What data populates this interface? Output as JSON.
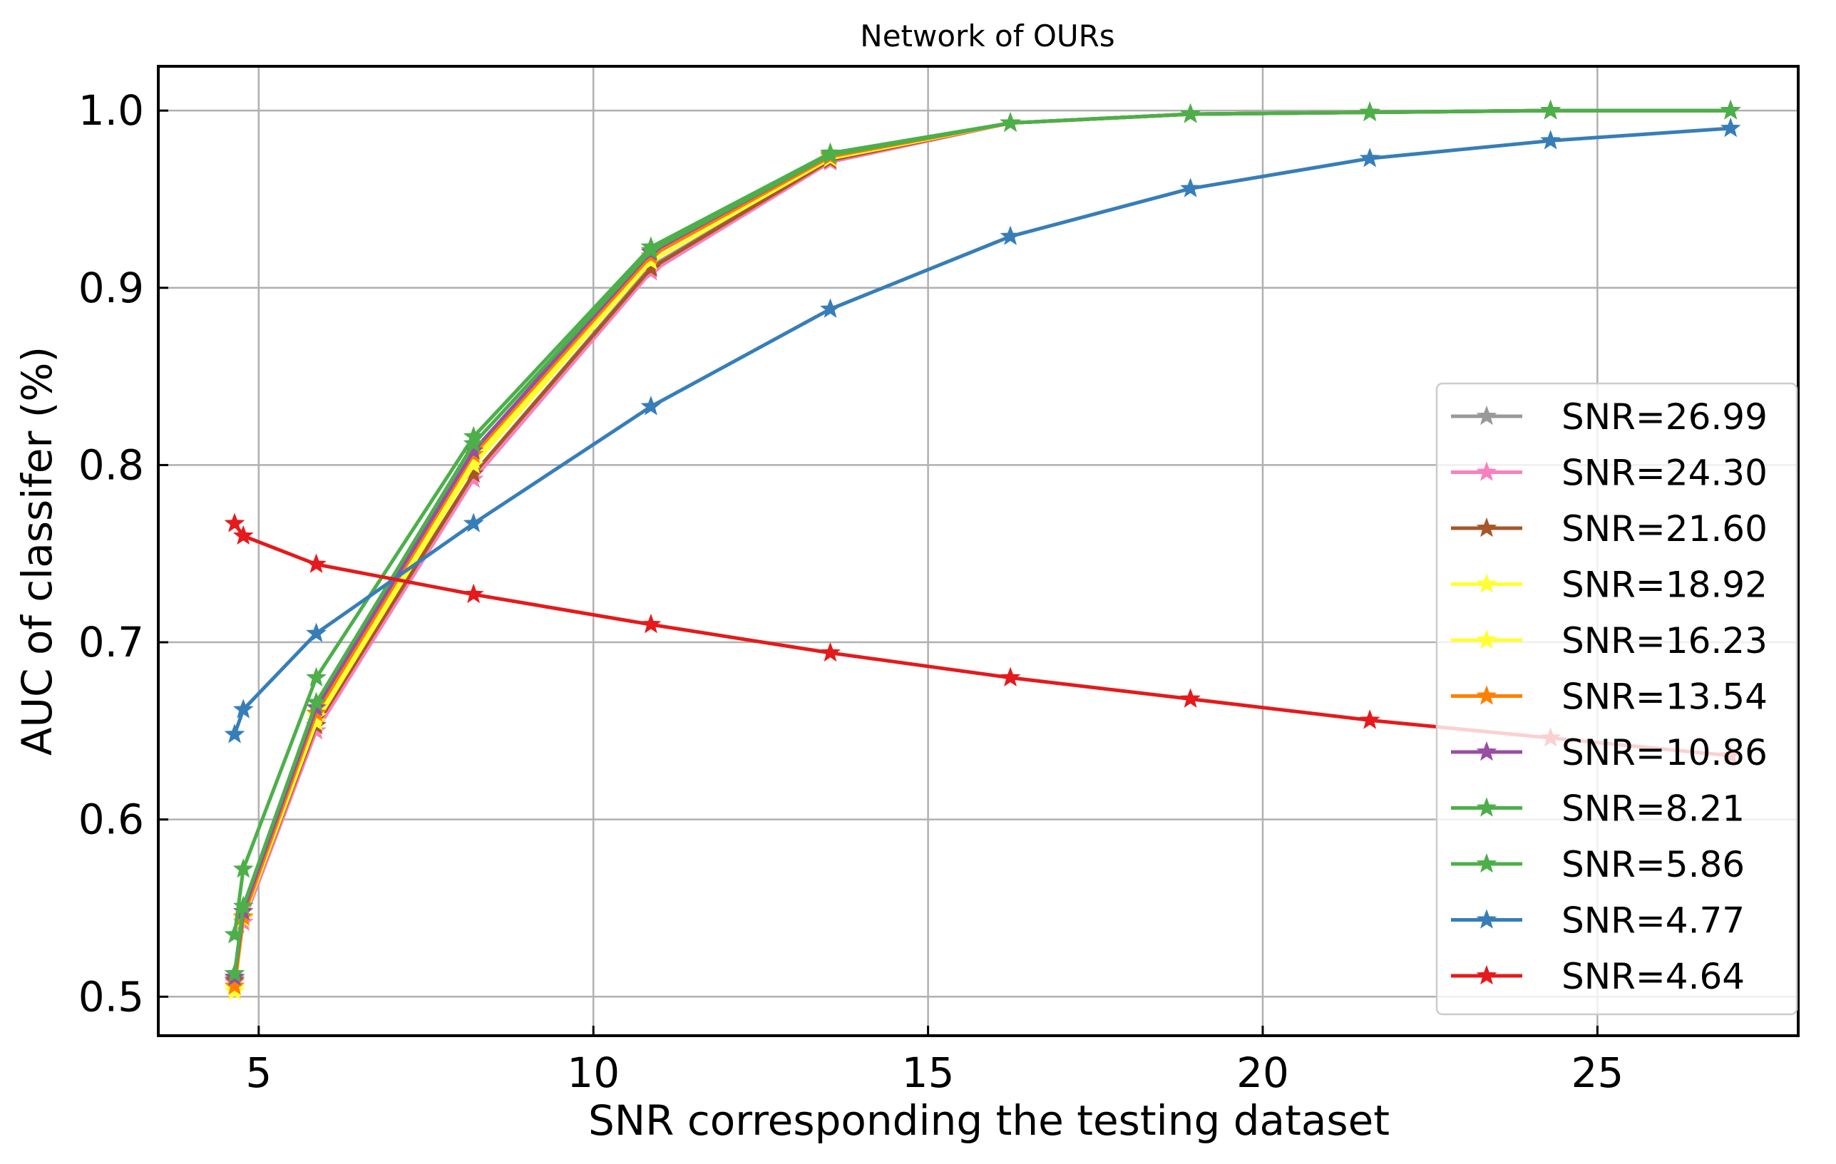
{
  "chart_data": {
    "type": "line",
    "title": "Network of OURs",
    "xlabel": "SNR corresponding the testing dataset",
    "ylabel": "AUC of classifer (%)",
    "xlim": [
      3.5,
      28.0
    ],
    "ylim": [
      0.478,
      1.025
    ],
    "xticks": [
      5,
      10,
      15,
      20,
      25
    ],
    "yticks": [
      0.5,
      0.6,
      0.7,
      0.8,
      0.9,
      1.0
    ],
    "xtick_labels": [
      "5",
      "10",
      "15",
      "20",
      "25"
    ],
    "ytick_labels": [
      "0.5",
      "0.6",
      "0.7",
      "0.8",
      "0.9",
      "1.0"
    ],
    "grid": true,
    "legend_position": "lower-right",
    "marker": "star",
    "x": [
      4.64,
      4.77,
      5.86,
      8.21,
      10.86,
      13.54,
      16.23,
      18.92,
      21.6,
      24.3,
      26.99
    ],
    "series": [
      {
        "name": "SNR=26.99",
        "color": "#999999",
        "values": [
          0.51,
          0.545,
          0.655,
          0.795,
          0.912,
          0.972,
          0.993,
          0.998,
          0.999,
          1.0,
          1.0
        ]
      },
      {
        "name": "SNR=24.30",
        "color": "#f781bf",
        "values": [
          0.508,
          0.542,
          0.65,
          0.792,
          0.909,
          0.971,
          0.993,
          0.998,
          0.999,
          1.0,
          1.0
        ]
      },
      {
        "name": "SNR=21.60",
        "color": "#a65628",
        "values": [
          0.509,
          0.544,
          0.653,
          0.795,
          0.911,
          0.972,
          0.993,
          0.998,
          0.999,
          1.0,
          1.0
        ]
      },
      {
        "name": "SNR=18.92",
        "color": "#ffff33",
        "values": [
          0.505,
          0.544,
          0.655,
          0.8,
          0.915,
          0.973,
          0.993,
          0.998,
          0.999,
          1.0,
          1.0
        ]
      },
      {
        "name": "SNR=16.23",
        "color": "#ffff33",
        "values": [
          0.503,
          0.545,
          0.658,
          0.803,
          0.918,
          0.974,
          0.993,
          0.998,
          0.999,
          1.0,
          1.0
        ]
      },
      {
        "name": "SNR=13.54",
        "color": "#ff7f00",
        "values": [
          0.506,
          0.545,
          0.66,
          0.806,
          0.918,
          0.974,
          0.993,
          0.998,
          0.999,
          1.0,
          1.0
        ]
      },
      {
        "name": "SNR=10.86",
        "color": "#984ea3",
        "values": [
          0.511,
          0.548,
          0.663,
          0.808,
          0.92,
          0.975,
          0.993,
          0.998,
          0.999,
          1.0,
          1.0
        ]
      },
      {
        "name": "SNR=8.21",
        "color": "#4daf4a",
        "values": [
          0.513,
          0.551,
          0.666,
          0.812,
          0.921,
          0.975,
          0.993,
          0.998,
          0.999,
          1.0,
          1.0
        ]
      },
      {
        "name": "SNR=5.86",
        "color": "#4daf4a",
        "values": [
          0.535,
          0.572,
          0.68,
          0.816,
          0.923,
          0.976,
          0.993,
          0.998,
          0.999,
          1.0,
          1.0
        ]
      },
      {
        "name": "SNR=4.77",
        "color": "#377eb8",
        "values": [
          0.648,
          0.662,
          0.705,
          0.767,
          0.833,
          0.888,
          0.929,
          0.956,
          0.973,
          0.983,
          0.99
        ]
      },
      {
        "name": "SNR=4.64",
        "color": "#e41a1c",
        "values": [
          0.767,
          0.76,
          0.744,
          0.727,
          0.71,
          0.694,
          0.68,
          0.668,
          0.656,
          0.646,
          0.636
        ]
      }
    ]
  }
}
